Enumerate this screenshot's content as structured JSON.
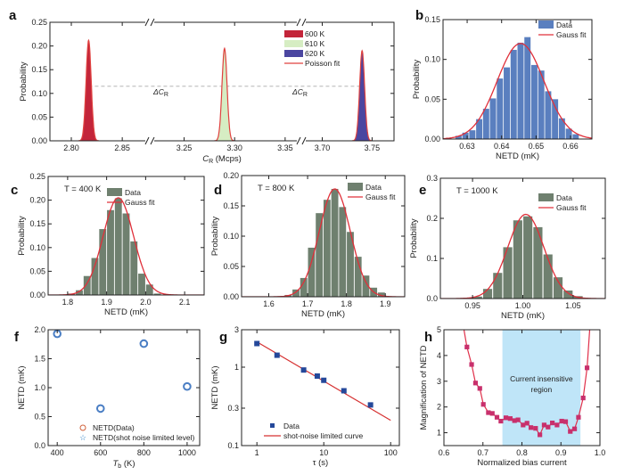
{
  "chart_data": [
    {
      "panel": "a",
      "type": "area",
      "xlabel": {
        "symbol": "C",
        "sub": "R",
        "unit": " (Mcps)"
      },
      "ylabel": "Probability",
      "ylim": [
        0,
        0.25
      ],
      "yticks": [
        "0.00",
        "0.05",
        "0.10",
        "0.15",
        "0.20",
        "0.25"
      ],
      "x_segments": [
        [
          2.779,
          2.877
        ],
        [
          3.216,
          3.366
        ],
        [
          3.679,
          3.772
        ]
      ],
      "xticks": [
        "2.80",
        "2.85",
        "3.25",
        "3.30",
        "3.35",
        "3.70",
        "3.75"
      ],
      "axis_breaks": true,
      "series": [
        {
          "name": "600 K",
          "color": "#c3253a",
          "peak_x": 2.817,
          "peak_y": 0.212,
          "sigma": 0.0025
        },
        {
          "name": "610 K",
          "color": "#d6edc3",
          "peak_x": 3.29,
          "peak_y": 0.195,
          "sigma": 0.0025
        },
        {
          "name": "620 K",
          "color": "#4b46a0",
          "peak_x": 3.74,
          "peak_y": 0.19,
          "sigma": 0.0025
        }
      ],
      "fit": {
        "name": "Poisson fit",
        "color": "#e0413f"
      },
      "reference_line": {
        "y": 0.115,
        "color": "#aaaaaa"
      },
      "annotations": [
        {
          "symbol": "ΔC",
          "sub": "R"
        },
        {
          "symbol": "ΔC",
          "sub": "R"
        }
      ],
      "legend": "top-right"
    },
    {
      "panel": "b",
      "type": "bar",
      "xlabel": "NETD (mK)",
      "ylabel": "Probability",
      "xlim": [
        0.623,
        0.6662
      ],
      "ylim": [
        0,
        0.15
      ],
      "xticks": [
        "0.63",
        "0.64",
        "0.65",
        "0.66"
      ],
      "yticks": [
        "0.00",
        "0.05",
        "0.10",
        "0.15"
      ],
      "bar_start": 0.6275,
      "bar_step": 0.002,
      "values": [
        0.004,
        0.008,
        0.011,
        0.025,
        0.038,
        0.051,
        0.076,
        0.09,
        0.112,
        0.121,
        0.128,
        0.093,
        0.086,
        0.06,
        0.05,
        0.026,
        0.013,
        0.006
      ],
      "bar_color": "#5a7fbf",
      "fit": {
        "name": "Gauss fit",
        "mean": 0.6455,
        "sigma": 0.0068,
        "peak": 0.12,
        "color": "#e0303a"
      },
      "data_name": "Data",
      "legend": "top-right"
    },
    {
      "panel": "c",
      "type": "bar",
      "title": "T = 400 K",
      "xlabel": "NETD (mK)",
      "ylabel": "Probability",
      "xlim": [
        1.75,
        2.15
      ],
      "ylim": [
        0,
        0.25
      ],
      "xticks": [
        "1.8",
        "1.9",
        "2.0",
        "2.1"
      ],
      "yticks": [
        "0.00",
        "0.05",
        "0.10",
        "0.15",
        "0.20",
        "0.25"
      ],
      "bar_start": 1.81,
      "bar_step": 0.02,
      "values": [
        0.003,
        0.01,
        0.04,
        0.078,
        0.139,
        0.179,
        0.204,
        0.172,
        0.113,
        0.045,
        0.022,
        0.003
      ],
      "bar_color": "#6f806f",
      "fit": {
        "name": "Gauss fit",
        "mean": 1.93,
        "sigma": 0.039,
        "peak": 0.205,
        "color": "#e0303a"
      },
      "data_name": "Data",
      "legend": "top-right"
    },
    {
      "panel": "d",
      "type": "bar",
      "title": "T = 800 K",
      "xlabel": "NETD (mK)",
      "ylabel": "Probability",
      "xlim": [
        1.53,
        1.95
      ],
      "ylim": [
        0,
        0.2
      ],
      "xticks": [
        "1.6",
        "1.7",
        "1.8",
        "1.9"
      ],
      "yticks": [
        "0.00",
        "0.05",
        "0.10",
        "0.15",
        "0.20"
      ],
      "bar_start": 1.65,
      "bar_step": 0.02,
      "values": [
        0.003,
        0.012,
        0.031,
        0.081,
        0.138,
        0.16,
        0.178,
        0.148,
        0.107,
        0.066,
        0.035,
        0.015,
        0.007
      ],
      "bar_color": "#6f806f",
      "fit": {
        "name": "Gauss fit",
        "mean": 1.77,
        "sigma": 0.04,
        "peak": 0.178,
        "color": "#e0303a"
      },
      "data_name": "Data",
      "legend": "top-right"
    },
    {
      "panel": "e",
      "type": "bar",
      "title": "T = 1000 K",
      "xlabel": "NETD (mK)",
      "ylabel": "Probability",
      "xlim": [
        0.918,
        1.082
      ],
      "ylim": [
        0,
        0.3
      ],
      "xticks": [
        "0.95",
        "1.00",
        "1.05"
      ],
      "yticks": [
        "0.0",
        "0.1",
        "0.2",
        "0.3"
      ],
      "bar_start": 0.955,
      "bar_step": 0.01,
      "values": [
        0.005,
        0.024,
        0.064,
        0.128,
        0.195,
        0.205,
        0.178,
        0.11,
        0.053,
        0.02,
        0.006
      ],
      "bar_color": "#6f806f",
      "fit": {
        "name": "Gauss fit",
        "mean": 1.003,
        "sigma": 0.018,
        "peak": 0.21,
        "color": "#e0303a"
      },
      "data_name": "Data",
      "legend": "top-right"
    },
    {
      "panel": "f",
      "type": "scatter",
      "xlabel": {
        "symbol": "T",
        "sub": "b",
        "unit": " (K)"
      },
      "ylabel": "NETD (mK)",
      "xlim": [
        358,
        1058
      ],
      "ylim": [
        0,
        2.0
      ],
      "xticks": [
        "400",
        "600",
        "800",
        "1000"
      ],
      "yticks": [
        "0.0",
        "0.5",
        "1.0",
        "1.5",
        "2.0"
      ],
      "x": [
        400,
        600,
        800,
        1000
      ],
      "series": [
        {
          "name": "NETD(Data)",
          "values": [
            1.93,
            0.64,
            1.76,
            1.02
          ],
          "color": "#d0603a",
          "marker": "circle"
        },
        {
          "name": "NETD(shot noise limited level)",
          "values": [
            1.93,
            0.64,
            1.76,
            1.02
          ],
          "color": "#3a88c8",
          "marker": "star"
        }
      ],
      "legend": "bottom-center"
    },
    {
      "panel": "g",
      "type": "scatter",
      "xlabel": "τ (s)",
      "ylabel": "NETD (mK)",
      "xscale": "log",
      "yscale": "log",
      "xlim": [
        0.59,
        135
      ],
      "ylim": [
        0.1,
        3
      ],
      "xticks": [
        "1",
        "10",
        "100"
      ],
      "yticks": [
        "0.1",
        "0.3",
        "1",
        "3"
      ],
      "x": [
        1,
        2,
        5,
        8,
        10,
        20,
        50
      ],
      "series": [
        {
          "name": "Data",
          "values": [
            2.0,
            1.42,
            0.92,
            0.77,
            0.68,
            0.5,
            0.33
          ],
          "color": "#24489a",
          "marker": "square"
        }
      ],
      "fit": {
        "name": "shot-noise limited curve",
        "coefficient": 2.1,
        "exponent": -0.5,
        "x_range": [
          1,
          100
        ],
        "color": "#d63030"
      },
      "legend": "bottom-left"
    },
    {
      "panel": "h",
      "type": "line",
      "xlabel": "Normalized bias current",
      "ylabel": "Magnification of NETD",
      "xlim": [
        0.6,
        1.0
      ],
      "ylim": [
        0.5,
        5
      ],
      "xticks": [
        "0.6",
        "0.7",
        "0.8",
        "0.9",
        "1.0"
      ],
      "yticks": [
        "1",
        "2",
        "3",
        "4",
        "5"
      ],
      "x": [
        0.659,
        0.671,
        0.681,
        0.692,
        0.701,
        0.714,
        0.724,
        0.736,
        0.746,
        0.759,
        0.77,
        0.781,
        0.79,
        0.803,
        0.813,
        0.823,
        0.835,
        0.846,
        0.857,
        0.867,
        0.878,
        0.89,
        0.902,
        0.912,
        0.924,
        0.935,
        0.945,
        0.957,
        0.967
      ],
      "values": [
        4.33,
        3.65,
        2.93,
        2.72,
        2.1,
        1.78,
        1.75,
        1.6,
        1.45,
        1.58,
        1.55,
        1.47,
        1.5,
        1.3,
        1.37,
        1.2,
        1.17,
        0.92,
        1.3,
        1.22,
        1.38,
        1.3,
        1.45,
        1.43,
        1.05,
        1.15,
        1.6,
        2.35,
        3.52
      ],
      "color": "#c8306c",
      "line_color": "#e0304a",
      "shaded_region": {
        "x": [
          0.75,
          0.95
        ],
        "color": "#bfe5f8",
        "label": [
          "Current insensitive",
          "region"
        ],
        "label_color": "#2a7e90"
      }
    }
  ]
}
